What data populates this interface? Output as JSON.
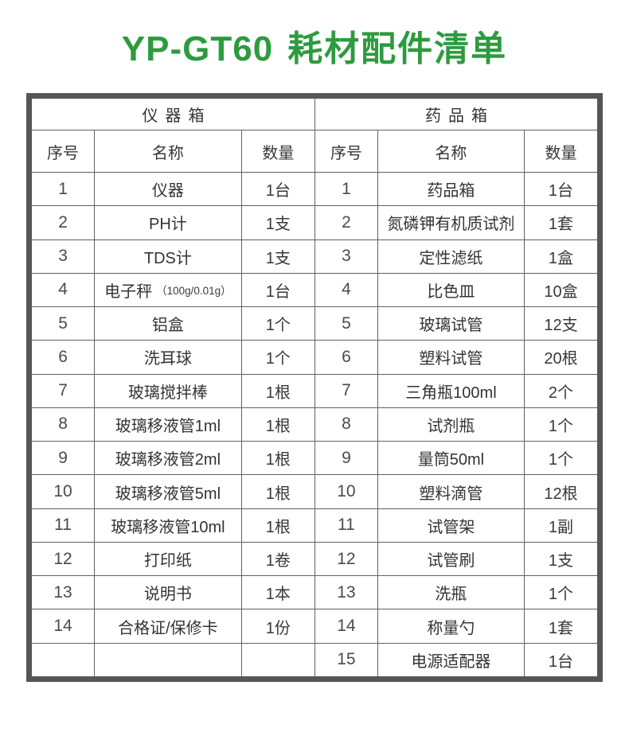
{
  "header": {
    "model": "YP-GT60",
    "subtitle": "耗材配件清单"
  },
  "colors": {
    "title_green": "#2d9b3f",
    "outer_border": "#565656",
    "grid_line": "#616161"
  },
  "tables": [
    {
      "id": "instrument-box",
      "title": "仪器箱",
      "columns": [
        "序号",
        "名称",
        "数量"
      ],
      "rows": [
        {
          "no": "1",
          "name": "仪器",
          "qty": "1台"
        },
        {
          "no": "2",
          "name": "PH计",
          "qty": "1支"
        },
        {
          "no": "3",
          "name": "TDS计",
          "qty": "1支"
        },
        {
          "no": "4",
          "name": "电子秤",
          "note": "（100g/0.01g）",
          "qty": "1台"
        },
        {
          "no": "5",
          "name": "铝盒",
          "qty": "1个"
        },
        {
          "no": "6",
          "name": "洗耳球",
          "qty": "1个"
        },
        {
          "no": "7",
          "name": "玻璃搅拌棒",
          "qty": "1根"
        },
        {
          "no": "8",
          "name": "玻璃移液管1ml",
          "qty": "1根"
        },
        {
          "no": "9",
          "name": "玻璃移液管2ml",
          "qty": "1根"
        },
        {
          "no": "10",
          "name": "玻璃移液管5ml",
          "qty": "1根"
        },
        {
          "no": "11",
          "name": "玻璃移液管10ml",
          "qty": "1根"
        },
        {
          "no": "12",
          "name": "打印纸",
          "qty": "1卷"
        },
        {
          "no": "13",
          "name": "说明书",
          "qty": "1本"
        },
        {
          "no": "14",
          "name": "合格证/保修卡",
          "qty": "1份"
        },
        {
          "no": "",
          "name": "",
          "qty": ""
        }
      ]
    },
    {
      "id": "medicine-box",
      "title": "药品箱",
      "columns": [
        "序号",
        "名称",
        "数量"
      ],
      "rows": [
        {
          "no": "1",
          "name": "药品箱",
          "qty": "1台"
        },
        {
          "no": "2",
          "name": "氮磷钾有机质试剂",
          "qty": "1套"
        },
        {
          "no": "3",
          "name": "定性滤纸",
          "qty": "1盒"
        },
        {
          "no": "4",
          "name": "比色皿",
          "qty": "10盒"
        },
        {
          "no": "5",
          "name": "玻璃试管",
          "qty": "12支"
        },
        {
          "no": "6",
          "name": "塑料试管",
          "qty": "20根"
        },
        {
          "no": "7",
          "name": "三角瓶100ml",
          "qty": "2个"
        },
        {
          "no": "8",
          "name": "试剂瓶",
          "qty": "1个"
        },
        {
          "no": "9",
          "name": "量筒50ml",
          "qty": "1个"
        },
        {
          "no": "10",
          "name": "塑料滴管",
          "qty": "12根"
        },
        {
          "no": "11",
          "name": "试管架",
          "qty": "1副"
        },
        {
          "no": "12",
          "name": "试管刷",
          "qty": "1支"
        },
        {
          "no": "13",
          "name": "洗瓶",
          "qty": "1个"
        },
        {
          "no": "14",
          "name": "称量勺",
          "qty": "1套"
        },
        {
          "no": "15",
          "name": "电源适配器",
          "qty": "1台"
        }
      ]
    }
  ]
}
